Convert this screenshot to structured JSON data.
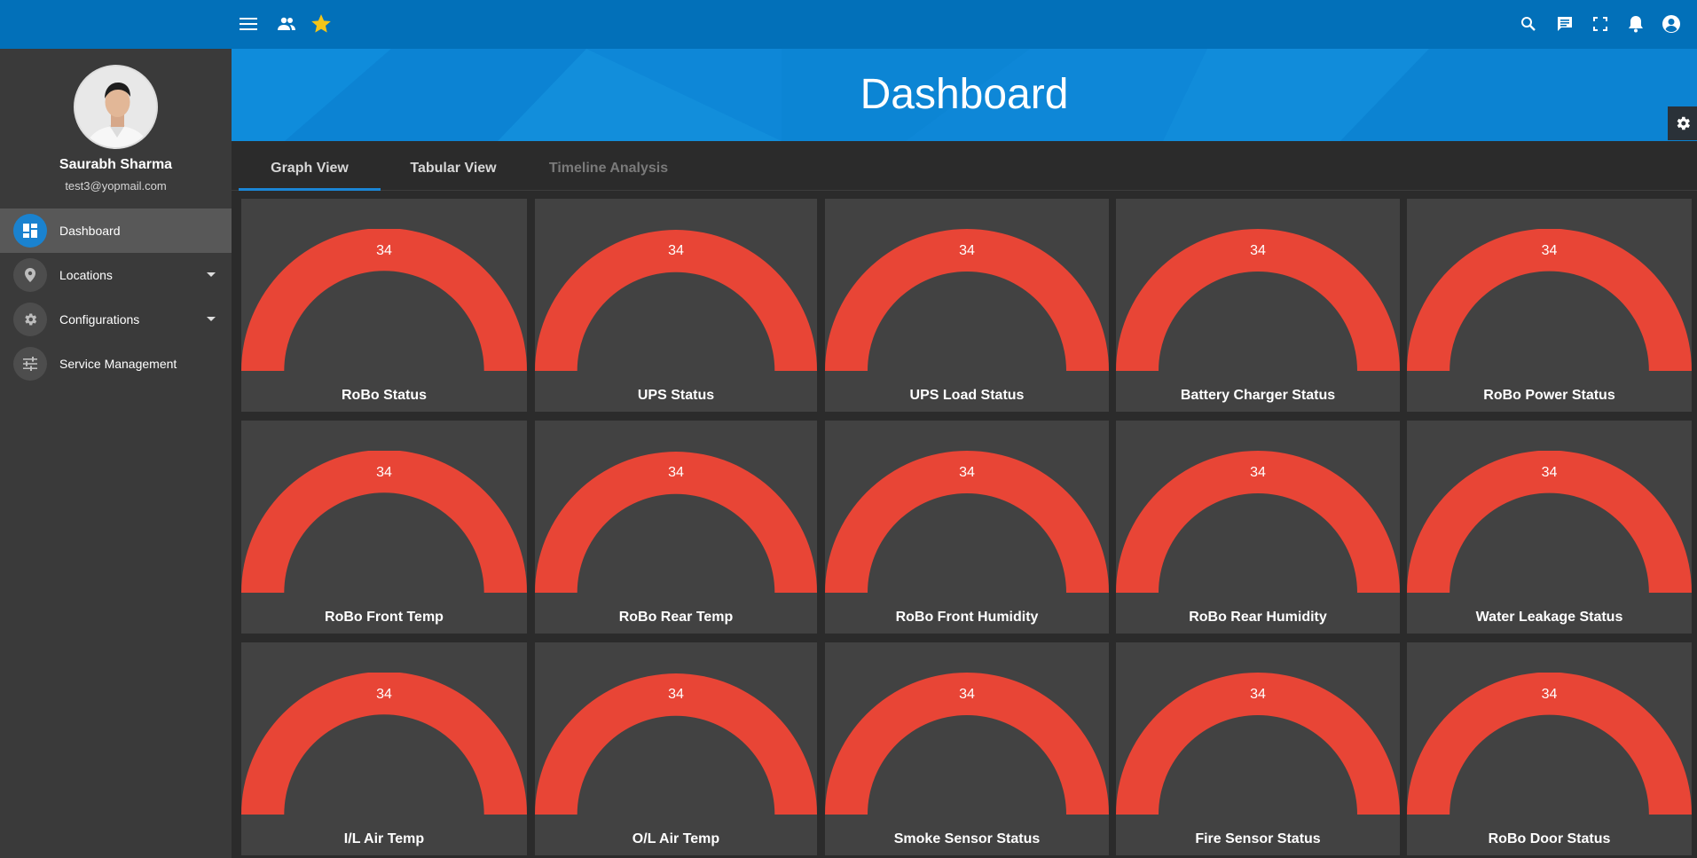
{
  "topbar": {
    "icons": [
      "menu-icon",
      "users-icon",
      "star-icon",
      "search-icon",
      "chat-icon",
      "fullscreen-icon",
      "bell-icon",
      "account-icon"
    ]
  },
  "user": {
    "name": "Saurabh Sharma",
    "email": "test3@yopmail.com"
  },
  "sidebar": {
    "items": [
      {
        "label": "Dashboard",
        "icon": "dashboard-icon",
        "active": true
      },
      {
        "label": "Locations",
        "icon": "location-pin-icon",
        "expandable": true
      },
      {
        "label": "Configurations",
        "icon": "gear-icon",
        "expandable": true
      },
      {
        "label": "Service Management",
        "icon": "sliders-icon"
      }
    ]
  },
  "page": {
    "title": "Dashboard"
  },
  "tabs": [
    {
      "label": "Graph View",
      "active": true
    },
    {
      "label": "Tabular View"
    },
    {
      "label": "Timeline Analysis",
      "disabled": true
    }
  ],
  "colors": {
    "gauge": "#e84536",
    "topbar": "#0270b9",
    "banner": "#0e87d7",
    "accent": "#1b86d6"
  },
  "gauges": [
    {
      "title": "RoBo Status",
      "value": "34"
    },
    {
      "title": "UPS Status",
      "value": "34"
    },
    {
      "title": "UPS Load Status",
      "value": "34"
    },
    {
      "title": "Battery Charger Status",
      "value": "34"
    },
    {
      "title": "RoBo Power Status",
      "value": "34"
    },
    {
      "title": "RoBo Front Temp",
      "value": "34"
    },
    {
      "title": "RoBo Rear Temp",
      "value": "34"
    },
    {
      "title": "RoBo Front Humidity",
      "value": "34"
    },
    {
      "title": "RoBo Rear Humidity",
      "value": "34"
    },
    {
      "title": "Water Leakage Status",
      "value": "34"
    },
    {
      "title": "I/L Air Temp",
      "value": "34"
    },
    {
      "title": "O/L Air Temp",
      "value": "34"
    },
    {
      "title": "Smoke Sensor Status",
      "value": "34"
    },
    {
      "title": "Fire Sensor Status",
      "value": "34"
    },
    {
      "title": "RoBo Door Status",
      "value": "34"
    }
  ]
}
